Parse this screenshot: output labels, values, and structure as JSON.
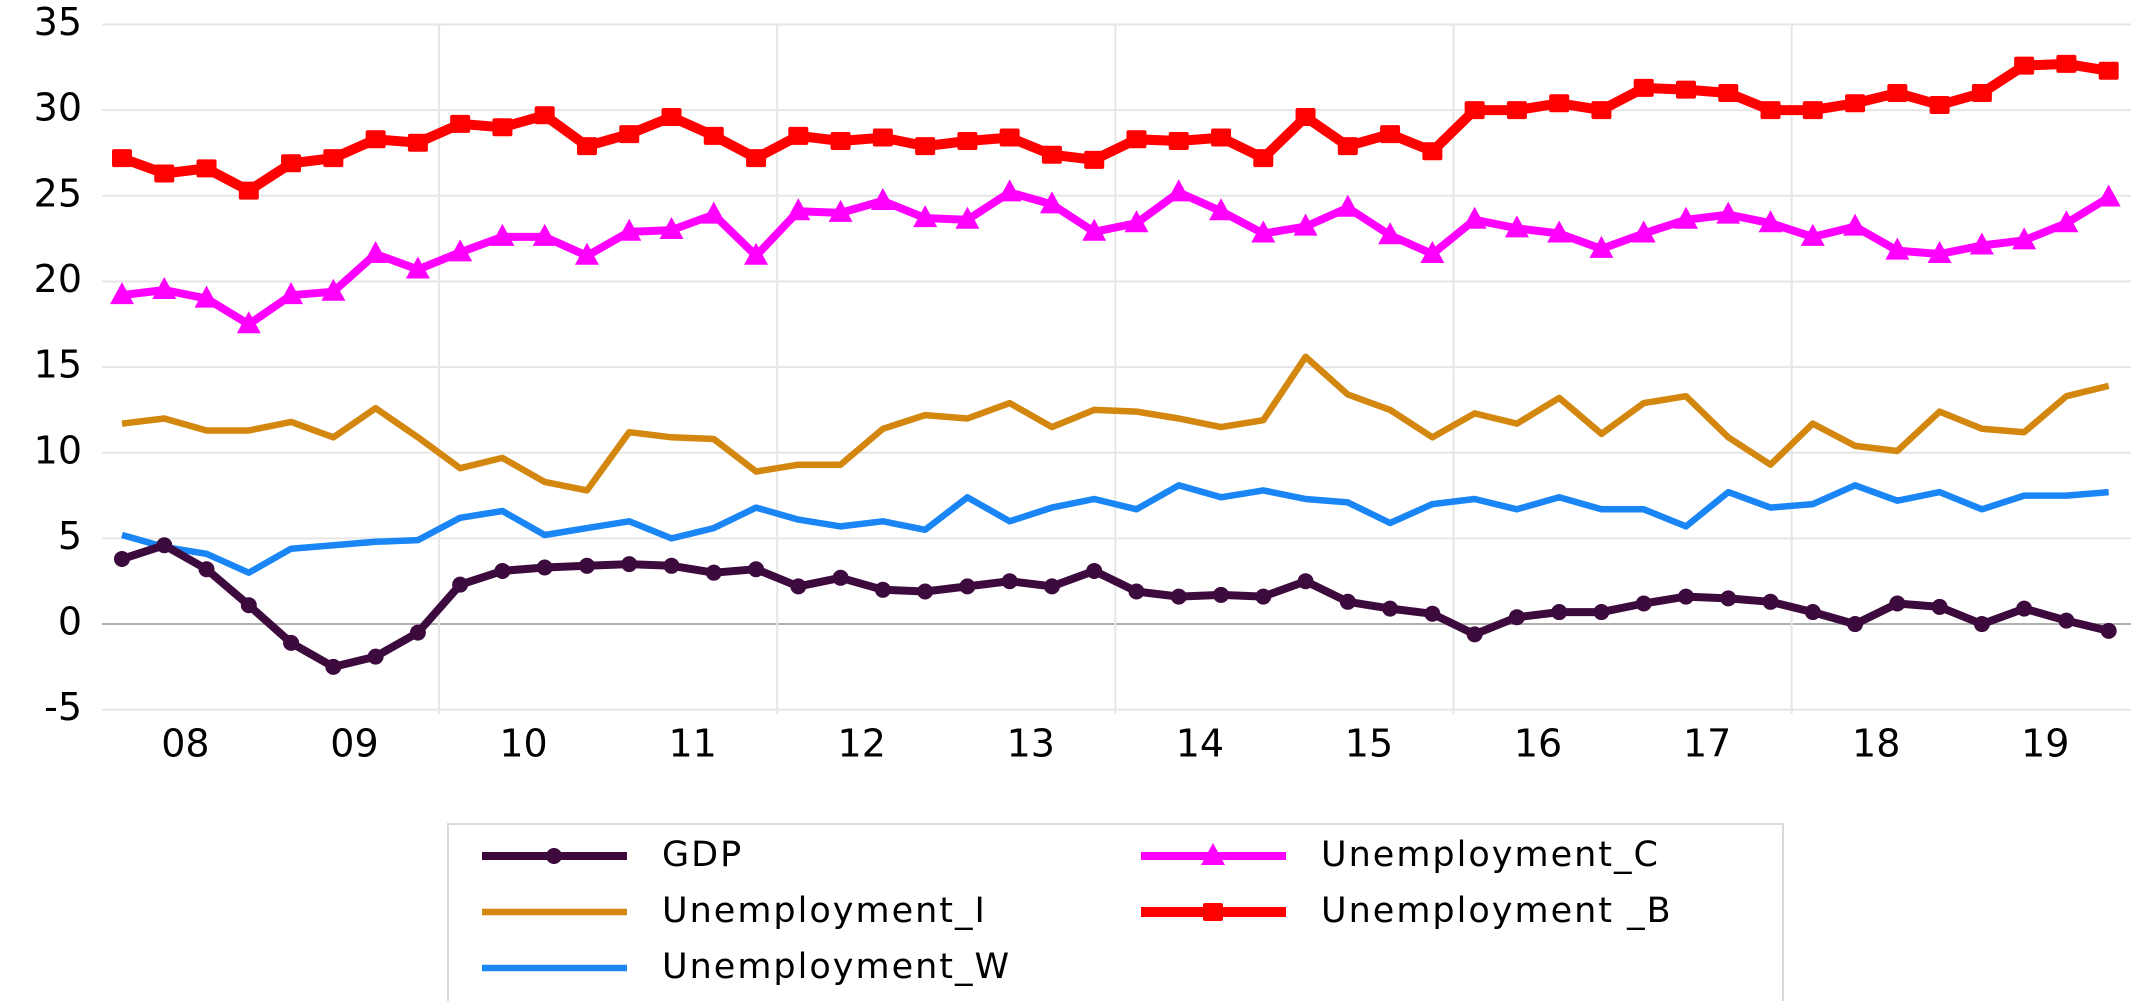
{
  "chart_data": {
    "type": "line",
    "categories": [
      "08",
      null,
      null,
      null,
      "09",
      null,
      null,
      null,
      "10",
      null,
      null,
      null,
      "11",
      null,
      null,
      null,
      "12",
      null,
      null,
      null,
      "13",
      null,
      null,
      null,
      "14",
      null,
      null,
      null,
      "15",
      null,
      null,
      null,
      "16",
      null,
      null,
      null,
      "17",
      null,
      null,
      null,
      "18",
      null,
      null,
      null,
      "19",
      null,
      null,
      null
    ],
    "series": [
      {
        "name": "GDP",
        "color": "#3d0a3d",
        "marker": "circle",
        "values": [
          3.8,
          4.6,
          3.2,
          1.1,
          -1.1,
          -2.5,
          -1.9,
          -0.5,
          2.3,
          3.1,
          3.3,
          3.4,
          3.5,
          3.4,
          3.0,
          3.2,
          2.2,
          2.7,
          2.0,
          1.9,
          2.2,
          2.5,
          2.2,
          3.1,
          1.9,
          1.6,
          1.7,
          1.6,
          2.5,
          1.3,
          0.9,
          0.6,
          -0.6,
          0.4,
          0.7,
          0.7,
          1.2,
          1.6,
          1.5,
          1.3,
          0.7,
          0.0,
          1.2,
          1.0,
          0.0,
          0.9,
          0.2,
          -0.4
        ]
      },
      {
        "name": "Unemployment_I",
        "color": "#d4870f",
        "marker": "none",
        "values": [
          11.7,
          12.0,
          11.3,
          11.3,
          11.8,
          10.9,
          12.6,
          10.9,
          9.1,
          9.7,
          8.3,
          7.8,
          11.2,
          10.9,
          10.8,
          8.9,
          9.3,
          9.3,
          11.4,
          12.2,
          12.0,
          12.9,
          11.5,
          12.5,
          12.4,
          12.0,
          11.5,
          11.9,
          15.6,
          13.4,
          12.5,
          10.9,
          12.3,
          11.7,
          13.2,
          11.1,
          12.9,
          13.3,
          10.9,
          9.3,
          11.7,
          10.4,
          10.1,
          12.4,
          11.4,
          11.2,
          13.3,
          13.9
        ]
      },
      {
        "name": "Unemployment_W",
        "color": "#1a86f5",
        "marker": "none",
        "values": [
          5.2,
          4.5,
          4.1,
          3.0,
          4.4,
          4.6,
          4.8,
          4.9,
          6.2,
          6.6,
          5.2,
          5.6,
          6.0,
          5.0,
          5.6,
          6.8,
          6.1,
          5.7,
          6.0,
          5.5,
          7.4,
          6.0,
          6.8,
          7.3,
          6.7,
          8.1,
          7.4,
          7.8,
          7.3,
          7.1,
          5.9,
          7.0,
          7.3,
          6.7,
          7.4,
          6.7,
          6.7,
          5.7,
          7.7,
          6.8,
          7.0,
          8.1,
          7.2,
          7.7,
          6.7,
          7.5,
          7.5,
          7.7
        ]
      },
      {
        "name": "Unemployment_C",
        "color": "#ff00ff",
        "marker": "triangle",
        "values": [
          19.2,
          19.5,
          19.0,
          17.5,
          19.2,
          19.4,
          21.6,
          20.7,
          21.7,
          22.6,
          22.6,
          21.5,
          22.9,
          23.0,
          23.9,
          21.5,
          24.1,
          24.0,
          24.7,
          23.7,
          23.6,
          25.2,
          24.5,
          22.9,
          23.4,
          25.2,
          24.1,
          22.8,
          23.2,
          24.3,
          22.7,
          21.6,
          23.6,
          23.1,
          22.8,
          21.9,
          22.8,
          23.6,
          23.9,
          23.4,
          22.6,
          23.2,
          21.8,
          21.6,
          22.1,
          22.4,
          23.4,
          24.9
        ]
      },
      {
        "name": "Unemployment _B",
        "color": "#ff0000",
        "marker": "square",
        "values": [
          27.2,
          26.3,
          26.6,
          25.3,
          26.9,
          27.2,
          28.3,
          28.1,
          29.2,
          29.0,
          29.7,
          27.9,
          28.6,
          29.6,
          28.5,
          27.2,
          28.5,
          28.2,
          28.4,
          27.9,
          28.2,
          28.4,
          27.4,
          27.1,
          28.3,
          28.2,
          28.4,
          27.2,
          29.6,
          27.9,
          28.6,
          27.6,
          30.0,
          30.0,
          30.4,
          30.0,
          31.3,
          31.2,
          31.0,
          30.0,
          30.0,
          30.4,
          31.0,
          30.3,
          31.0,
          32.6,
          32.7,
          32.3
        ]
      }
    ],
    "ylim": [
      -5,
      35
    ],
    "yticks": [
      -5,
      0,
      5,
      10,
      15,
      20,
      25,
      30,
      35
    ],
    "grid": true,
    "legend": "bottom"
  }
}
